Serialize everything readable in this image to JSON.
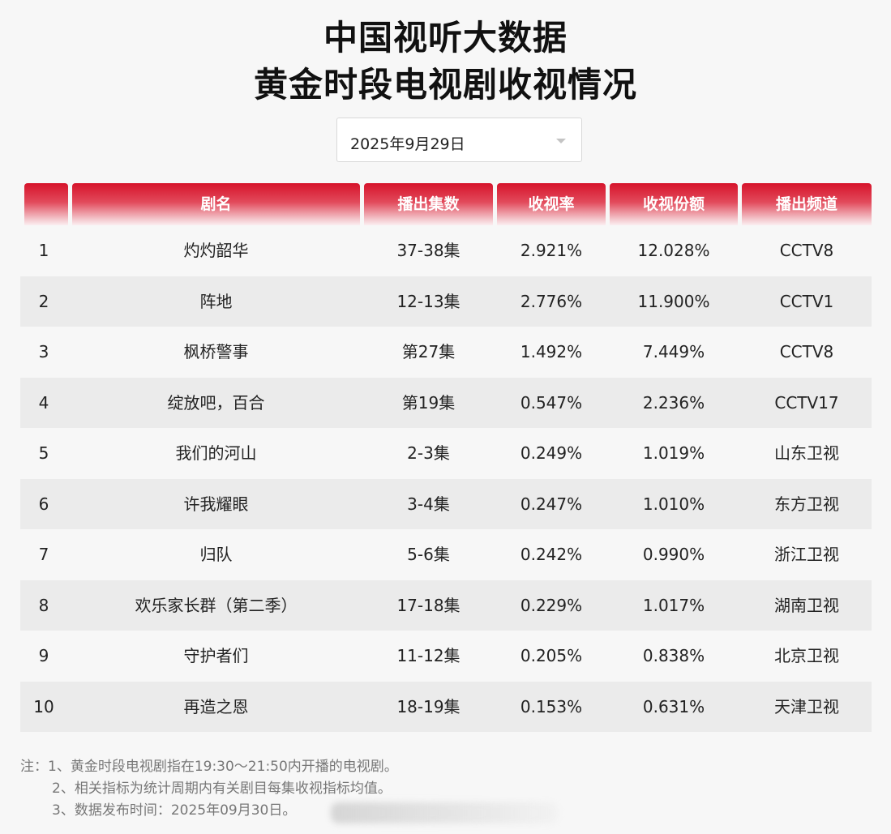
{
  "title": {
    "line1": "中国视听大数据",
    "line2": "黄金时段电视剧收视情况"
  },
  "date_select": {
    "value": "2025年9月29日"
  },
  "table": {
    "headers": [
      "",
      "剧名",
      "播出集数",
      "收视率",
      "收视份额",
      "播出频道"
    ],
    "rows": [
      {
        "rank": "1",
        "name": "灼灼韶华",
        "episodes": "37-38集",
        "rating": "2.921%",
        "share": "12.028%",
        "channel": "CCTV8"
      },
      {
        "rank": "2",
        "name": "阵地",
        "episodes": "12-13集",
        "rating": "2.776%",
        "share": "11.900%",
        "channel": "CCTV1"
      },
      {
        "rank": "3",
        "name": "枫桥警事",
        "episodes": "第27集",
        "rating": "1.492%",
        "share": "7.449%",
        "channel": "CCTV8"
      },
      {
        "rank": "4",
        "name": "绽放吧，百合",
        "episodes": "第19集",
        "rating": "0.547%",
        "share": "2.236%",
        "channel": "CCTV17"
      },
      {
        "rank": "5",
        "name": "我们的河山",
        "episodes": "2-3集",
        "rating": "0.249%",
        "share": "1.019%",
        "channel": "山东卫视"
      },
      {
        "rank": "6",
        "name": "许我耀眼",
        "episodes": "3-4集",
        "rating": "0.247%",
        "share": "1.010%",
        "channel": "东方卫视"
      },
      {
        "rank": "7",
        "name": "归队",
        "episodes": "5-6集",
        "rating": "0.242%",
        "share": "0.990%",
        "channel": "浙江卫视"
      },
      {
        "rank": "8",
        "name": "欢乐家长群（第二季）",
        "episodes": "17-18集",
        "rating": "0.229%",
        "share": "1.017%",
        "channel": "湖南卫视"
      },
      {
        "rank": "9",
        "name": "守护者们",
        "episodes": "11-12集",
        "rating": "0.205%",
        "share": "0.838%",
        "channel": "北京卫视"
      },
      {
        "rank": "10",
        "name": "再造之恩",
        "episodes": "18-19集",
        "rating": "0.153%",
        "share": "0.631%",
        "channel": "天津卫视"
      }
    ]
  },
  "footnotes": [
    "注：1、黄金时段电视剧指在19:30～21:50内开播的电视剧。",
    "2、相关指标为统计周期内有关剧目每集收视指标均值。",
    "3、数据发布时间：2025年09月30日。"
  ]
}
